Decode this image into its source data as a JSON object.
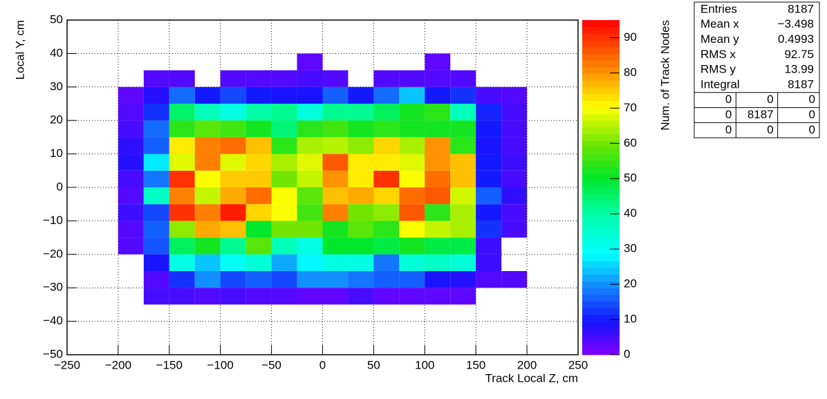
{
  "chart_data": {
    "type": "heatmap",
    "x_label": "Track Local Z, cm",
    "y_label": "Local Y, cm",
    "z_label": "Num. of Track Nodes",
    "xbins": [
      -200,
      -175,
      -150,
      -125,
      -100,
      -75,
      -50,
      -25,
      0,
      25,
      50,
      75,
      100,
      125,
      150,
      175,
      200
    ],
    "ybins": [
      -35,
      -30,
      -25,
      -20,
      -15,
      -10,
      -5,
      0,
      5,
      10,
      15,
      20,
      25,
      30,
      35,
      40
    ],
    "z": [
      [
        null,
        5,
        5,
        4,
        5,
        4,
        4,
        3,
        3,
        5,
        3,
        3,
        3,
        3,
        null,
        null
      ],
      [
        null,
        4,
        12,
        20,
        14,
        16,
        14,
        20,
        20,
        18,
        16,
        16,
        9,
        8,
        4,
        4
      ],
      [
        null,
        9,
        32,
        24,
        30,
        34,
        22,
        28,
        32,
        32,
        18,
        34,
        36,
        34,
        6,
        null
      ],
      [
        4,
        15,
        46,
        52,
        42,
        58,
        38,
        32,
        50,
        50,
        48,
        52,
        48,
        48,
        6,
        null
      ],
      [
        4,
        16,
        62,
        78,
        76,
        50,
        60,
        60,
        52,
        58,
        54,
        70,
        66,
        64,
        12,
        5
      ],
      [
        6,
        14,
        90,
        82,
        92,
        74,
        70,
        56,
        82,
        60,
        62,
        86,
        54,
        64,
        10,
        5
      ],
      [
        4,
        36,
        82,
        66,
        78,
        84,
        70,
        58,
        76,
        78,
        74,
        84,
        86,
        67,
        16,
        7
      ],
      [
        5,
        18,
        90,
        70,
        75,
        75,
        60,
        66,
        80,
        72,
        90,
        70,
        84,
        76,
        10,
        5
      ],
      [
        8,
        27,
        68,
        82,
        68,
        74,
        64,
        68,
        86,
        72,
        72,
        68,
        80,
        76,
        10,
        6
      ],
      [
        7,
        16,
        72,
        82,
        84,
        76,
        54,
        64,
        65,
        62,
        74,
        64,
        80,
        54,
        9,
        5
      ],
      [
        5,
        17,
        54,
        58,
        56,
        52,
        44,
        54,
        56,
        52,
        54,
        52,
        52,
        52,
        10,
        5
      ],
      [
        4,
        12,
        45,
        38,
        32,
        40,
        42,
        33,
        42,
        42,
        46,
        52,
        54,
        38,
        11,
        5
      ],
      [
        3,
        8,
        17,
        10,
        14,
        10,
        9,
        9,
        16,
        10,
        17,
        24,
        10,
        12,
        5,
        4
      ],
      [
        null,
        4,
        4,
        null,
        4,
        4,
        4,
        5,
        4,
        null,
        4,
        4,
        4,
        4,
        null,
        null
      ],
      [
        null,
        null,
        null,
        null,
        null,
        null,
        null,
        3,
        null,
        null,
        null,
        null,
        3,
        null,
        null,
        null
      ]
    ],
    "xlim": [
      -250,
      250
    ],
    "ylim": [
      -50,
      50
    ],
    "zlim": [
      0,
      95
    ],
    "xticks": [
      {
        "value": -250,
        "label": "−250"
      },
      {
        "value": -200,
        "label": "−200"
      },
      {
        "value": -150,
        "label": "−150"
      },
      {
        "value": -100,
        "label": "−100"
      },
      {
        "value": -50,
        "label": "−50"
      },
      0,
      50,
      100,
      150,
      200,
      250
    ],
    "yticks": [
      {
        "value": -50,
        "label": "−50"
      },
      {
        "value": -40,
        "label": "−40"
      },
      {
        "value": -30,
        "label": "−30"
      },
      {
        "value": -20,
        "label": "−20"
      },
      {
        "value": -10,
        "label": "−10"
      },
      0,
      10,
      20,
      30,
      40,
      50
    ],
    "zticks": [
      0,
      10,
      20,
      30,
      40,
      50,
      60,
      70,
      80,
      90
    ],
    "grid": true,
    "stats_box": {
      "rows": [
        [
          "Entries",
          "8187"
        ],
        [
          "Mean x",
          "−3.498"
        ],
        [
          "Mean y",
          "0.4993"
        ],
        [
          "RMS x",
          "92.75"
        ],
        [
          "RMS y",
          "13.99"
        ],
        [
          "Integral",
          "8187"
        ]
      ],
      "matrix": [
        [
          "0",
          "0",
          "0"
        ],
        [
          "0",
          "8187",
          "0"
        ],
        [
          "0",
          "0",
          "0"
        ]
      ]
    }
  }
}
